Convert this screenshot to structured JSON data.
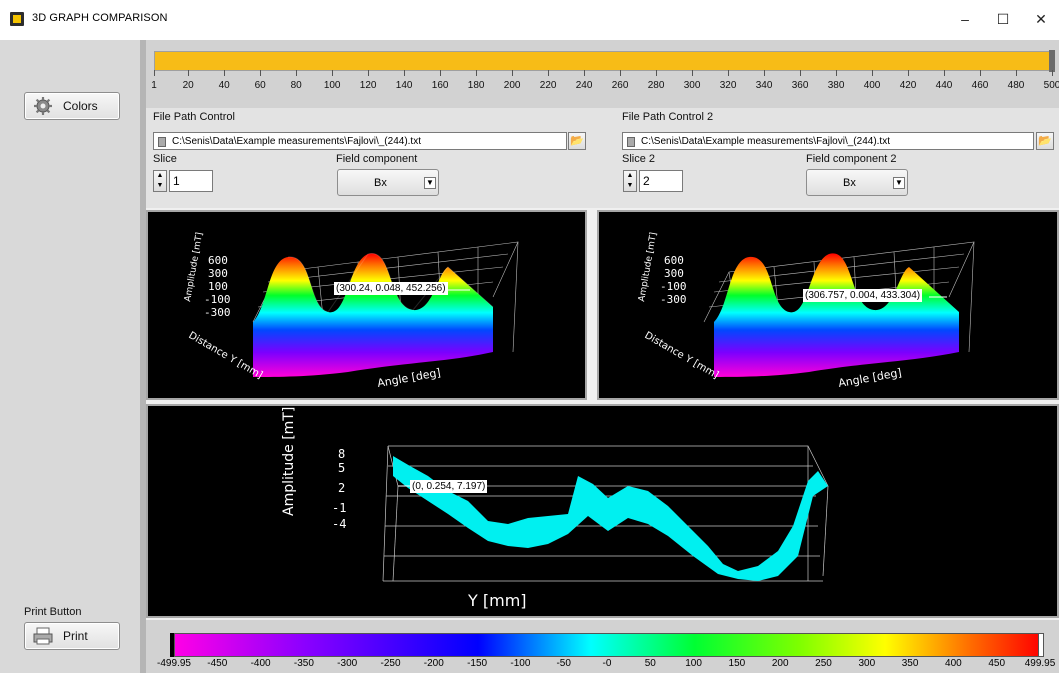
{
  "window": {
    "title": "3D GRAPH COMPARISON",
    "minimize": "–",
    "maximize": "☐",
    "close": "✕"
  },
  "left_panel": {
    "colors_label": "Colors",
    "print_caption": "Print Button",
    "print_label": "Print"
  },
  "slider": {
    "ticks": [
      "1",
      "20",
      "40",
      "60",
      "80",
      "100",
      "120",
      "140",
      "160",
      "180",
      "200",
      "220",
      "240",
      "260",
      "280",
      "300",
      "320",
      "340",
      "360",
      "380",
      "400",
      "420",
      "440",
      "460",
      "480",
      "500"
    ],
    "value": 500,
    "range": [
      1,
      500
    ]
  },
  "left_controls": {
    "file_path_label": "File Path Control",
    "file_path_value": "C:\\Senis\\Data\\Example measurements\\Fajlovi\\_(244).txt",
    "slice_label": "Slice",
    "slice_value": "1",
    "field_component_label": "Field component",
    "field_component_value": "Bx"
  },
  "right_controls": {
    "file_path_label": "File Path Control 2",
    "file_path_value": "C:\\Senis\\Data\\Example measurements\\Fajlovi\\_(244).txt",
    "slice_label": "Slice 2",
    "slice_value": "2",
    "field_component_label": "Field component 2",
    "field_component_value": "Bx"
  },
  "graphs": {
    "graph1_cursor": "(300.24, 0.048, 452.256)",
    "graph2_cursor": "(306.757, 0.004, 433.304)",
    "graph3_cursor": "(0, 0.254, 7.197)"
  },
  "colorbar": {
    "labels": [
      "-499.95",
      "-450",
      "-400",
      "-350",
      "-300",
      "-250",
      "-200",
      "-150",
      "-100",
      "-50",
      "-0",
      "50",
      "100",
      "150",
      "200",
      "250",
      "300",
      "350",
      "400",
      "450",
      "499.95"
    ]
  },
  "colors": {
    "slider_fill": "#f7bc17",
    "graph_bg": "#000000",
    "cyan_surface": "#00f0f0"
  }
}
